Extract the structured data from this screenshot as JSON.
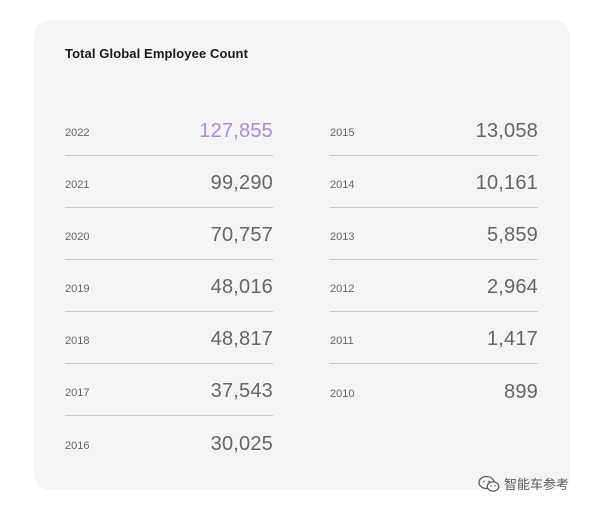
{
  "title": "Total Global Employee Count",
  "left_column": [
    {
      "year": "2022",
      "count": "127,855"
    },
    {
      "year": "2021",
      "count": "99,290"
    },
    {
      "year": "2020",
      "count": "70,757"
    },
    {
      "year": "2019",
      "count": "48,016"
    },
    {
      "year": "2018",
      "count": "48,817"
    },
    {
      "year": "2017",
      "count": "37,543"
    },
    {
      "year": "2016",
      "count": "30,025"
    }
  ],
  "right_column": [
    {
      "year": "2015",
      "count": "13,058"
    },
    {
      "year": "2014",
      "count": "10,161"
    },
    {
      "year": "2013",
      "count": "5,859"
    },
    {
      "year": "2012",
      "count": "2,964"
    },
    {
      "year": "2011",
      "count": "1,417"
    },
    {
      "year": "2010",
      "count": "899"
    }
  ],
  "colors": {
    "highlight": "#a98be0",
    "text": "#666666",
    "card": "#f5f5f5"
  },
  "watermark": {
    "icon": "wechat-icon",
    "text": "智能车参考"
  }
}
